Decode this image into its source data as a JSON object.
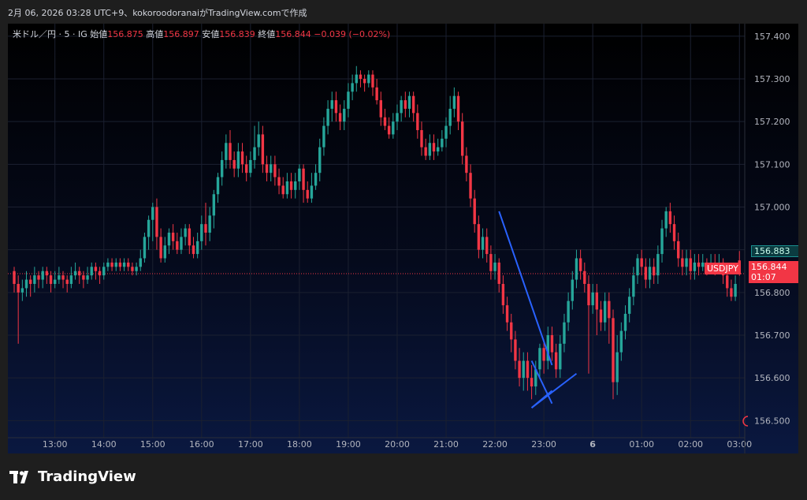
{
  "header": {
    "text": "2月 06, 2026 03:28 UTC+9、kokoroodoranaiがTradingView.comで作成"
  },
  "legend": {
    "symbol": "米ドル／円 · 5 · IG",
    "open_label": "始値",
    "open": "156.875",
    "high_label": "高値",
    "high": "156.897",
    "low_label": "安値",
    "low": "156.839",
    "close_label": "終値",
    "close": "156.844",
    "change": "−0.039 (−0.02%)"
  },
  "price_tags": {
    "bid": "156.883",
    "last_symbol": "USDJPY",
    "last_price": "156.844",
    "countdown": "01:07"
  },
  "footer": {
    "logo_text": "TradingView"
  },
  "colors": {
    "up": "#26a69a",
    "down": "#f23645",
    "drawing": "#2962ff",
    "bid_tag": "#0e6c6c"
  },
  "chart_data": {
    "type": "candlestick",
    "symbol": "USDJPY",
    "interval": "5",
    "ylim": [
      156.46,
      157.42
    ],
    "y_ticks": [
      "157.400",
      "157.300",
      "157.200",
      "157.100",
      "157.000",
      "156.900",
      "156.800",
      "156.700",
      "156.600",
      "156.500"
    ],
    "y_tick_values": [
      157.4,
      157.3,
      157.2,
      157.1,
      157.0,
      156.9,
      156.8,
      156.7,
      156.6,
      156.5
    ],
    "x_ticks": [
      "13:00",
      "14:00",
      "15:00",
      "16:00",
      "17:00",
      "18:00",
      "19:00",
      "20:00",
      "21:00",
      "22:00",
      "23:00",
      "6",
      "01:00",
      "02:00",
      "03:00"
    ],
    "x_tick_index": [
      10,
      22,
      34,
      46,
      58,
      70,
      82,
      94,
      106,
      118,
      130,
      142,
      154,
      166,
      178
    ],
    "last_price": 156.844,
    "grid": true,
    "candles": [
      [
        156.85,
        156.82,
        156.86,
        156.8
      ],
      [
        156.82,
        156.8,
        156.84,
        156.68
      ],
      [
        156.8,
        156.81,
        156.83,
        156.78
      ],
      [
        156.81,
        156.83,
        156.85,
        156.79
      ],
      [
        156.83,
        156.82,
        156.84,
        156.79
      ],
      [
        156.82,
        156.84,
        156.86,
        156.8
      ],
      [
        156.84,
        156.83,
        156.85,
        156.81
      ],
      [
        156.83,
        156.85,
        156.86,
        156.81
      ],
      [
        156.85,
        156.84,
        156.86,
        156.82
      ],
      [
        156.84,
        156.82,
        156.85,
        156.8
      ],
      [
        156.82,
        156.83,
        156.85,
        156.81
      ],
      [
        156.83,
        156.84,
        156.86,
        156.82
      ],
      [
        156.84,
        156.83,
        156.85,
        156.81
      ],
      [
        156.83,
        156.82,
        156.84,
        156.8
      ],
      [
        156.82,
        156.84,
        156.86,
        156.81
      ],
      [
        156.84,
        156.85,
        156.87,
        156.83
      ],
      [
        156.85,
        156.84,
        156.86,
        156.82
      ],
      [
        156.84,
        156.83,
        156.85,
        156.81
      ],
      [
        156.83,
        156.84,
        156.86,
        156.82
      ],
      [
        156.84,
        156.86,
        156.87,
        156.83
      ],
      [
        156.86,
        156.85,
        156.87,
        156.83
      ],
      [
        156.85,
        156.84,
        156.86,
        156.82
      ],
      [
        156.84,
        156.86,
        156.87,
        156.83
      ],
      [
        156.86,
        156.87,
        156.88,
        156.85
      ],
      [
        156.87,
        156.86,
        156.88,
        156.85
      ],
      [
        156.86,
        156.87,
        156.88,
        156.85
      ],
      [
        156.87,
        156.86,
        156.88,
        156.85
      ],
      [
        156.86,
        156.87,
        156.88,
        156.85
      ],
      [
        156.87,
        156.86,
        156.88,
        156.85
      ],
      [
        156.86,
        156.85,
        156.87,
        156.84
      ],
      [
        156.85,
        156.86,
        156.87,
        156.84
      ],
      [
        156.86,
        156.88,
        156.9,
        156.85
      ],
      [
        156.88,
        156.93,
        156.94,
        156.87
      ],
      [
        156.93,
        156.97,
        156.98,
        156.9
      ],
      [
        156.97,
        157.0,
        157.01,
        156.92
      ],
      [
        157.0,
        156.93,
        157.02,
        156.9
      ],
      [
        156.93,
        156.88,
        156.95,
        156.87
      ],
      [
        156.88,
        156.91,
        156.93,
        156.87
      ],
      [
        156.91,
        156.94,
        156.95,
        156.89
      ],
      [
        156.94,
        156.92,
        156.96,
        156.9
      ],
      [
        156.92,
        156.9,
        156.94,
        156.89
      ],
      [
        156.9,
        156.93,
        156.95,
        156.89
      ],
      [
        156.93,
        156.95,
        156.96,
        156.91
      ],
      [
        156.95,
        156.91,
        156.96,
        156.89
      ],
      [
        156.91,
        156.89,
        156.93,
        156.88
      ],
      [
        156.89,
        156.92,
        156.94,
        156.88
      ],
      [
        156.92,
        156.96,
        156.98,
        156.9
      ],
      [
        156.96,
        156.94,
        157.01,
        156.91
      ],
      [
        156.94,
        156.98,
        157.0,
        156.92
      ],
      [
        156.98,
        157.03,
        157.04,
        156.95
      ],
      [
        157.03,
        157.07,
        157.08,
        157.01
      ],
      [
        157.07,
        157.11,
        157.13,
        157.05
      ],
      [
        157.11,
        157.15,
        157.17,
        157.09
      ],
      [
        157.15,
        157.11,
        157.18,
        157.09
      ],
      [
        157.11,
        157.09,
        157.13,
        157.07
      ],
      [
        157.09,
        157.13,
        157.15,
        157.07
      ],
      [
        157.13,
        157.1,
        157.15,
        157.08
      ],
      [
        157.1,
        157.08,
        157.12,
        157.06
      ],
      [
        157.08,
        157.11,
        157.13,
        157.07
      ],
      [
        157.11,
        157.14,
        157.19,
        157.09
      ],
      [
        157.14,
        157.17,
        157.2,
        157.12
      ],
      [
        157.17,
        157.1,
        157.19,
        157.08
      ],
      [
        157.1,
        157.08,
        157.12,
        157.06
      ],
      [
        157.08,
        157.1,
        157.12,
        157.06
      ],
      [
        157.1,
        157.07,
        157.12,
        157.05
      ],
      [
        157.07,
        157.05,
        157.09,
        157.03
      ],
      [
        157.05,
        157.03,
        157.07,
        157.02
      ],
      [
        157.03,
        157.06,
        157.08,
        157.02
      ],
      [
        157.06,
        157.04,
        157.08,
        157.02
      ],
      [
        157.04,
        157.06,
        157.08,
        157.02
      ],
      [
        157.06,
        157.09,
        157.1,
        157.04
      ],
      [
        157.09,
        157.04,
        157.1,
        157.01
      ],
      [
        157.04,
        157.02,
        157.06,
        157.01
      ],
      [
        157.02,
        157.05,
        157.08,
        157.01
      ],
      [
        157.05,
        157.08,
        157.1,
        157.04
      ],
      [
        157.08,
        157.14,
        157.16,
        157.06
      ],
      [
        157.14,
        157.19,
        157.21,
        157.12
      ],
      [
        157.19,
        157.23,
        157.25,
        157.17
      ],
      [
        157.23,
        157.25,
        157.27,
        157.2
      ],
      [
        157.25,
        157.22,
        157.27,
        157.2
      ],
      [
        157.22,
        157.2,
        157.24,
        157.18
      ],
      [
        157.2,
        157.23,
        157.25,
        157.18
      ],
      [
        157.23,
        157.27,
        157.29,
        157.21
      ],
      [
        157.27,
        157.29,
        157.31,
        157.25
      ],
      [
        157.29,
        157.31,
        157.33,
        157.27
      ],
      [
        157.31,
        157.3,
        157.32,
        157.28
      ],
      [
        157.3,
        157.29,
        157.31,
        157.27
      ],
      [
        157.29,
        157.31,
        157.32,
        157.28
      ],
      [
        157.31,
        157.28,
        157.32,
        157.26
      ],
      [
        157.28,
        157.25,
        157.3,
        157.24
      ],
      [
        157.25,
        157.21,
        157.27,
        157.19
      ],
      [
        157.21,
        157.19,
        157.23,
        157.18
      ],
      [
        157.19,
        157.17,
        157.21,
        157.16
      ],
      [
        157.17,
        157.2,
        157.22,
        157.16
      ],
      [
        157.2,
        157.22,
        157.24,
        157.18
      ],
      [
        157.22,
        157.25,
        157.26,
        157.2
      ],
      [
        157.25,
        157.23,
        157.27,
        157.21
      ],
      [
        157.23,
        157.26,
        157.27,
        157.21
      ],
      [
        157.26,
        157.22,
        157.27,
        157.2
      ],
      [
        157.22,
        157.18,
        157.24,
        157.16
      ],
      [
        157.18,
        157.14,
        157.2,
        157.12
      ],
      [
        157.14,
        157.12,
        157.16,
        157.11
      ],
      [
        157.12,
        157.15,
        157.17,
        157.11
      ],
      [
        157.15,
        157.13,
        157.17,
        157.11
      ],
      [
        157.13,
        157.14,
        157.16,
        157.12
      ],
      [
        157.14,
        157.16,
        157.18,
        157.13
      ],
      [
        157.16,
        157.19,
        157.21,
        157.14
      ],
      [
        157.19,
        157.23,
        157.26,
        157.17
      ],
      [
        157.23,
        157.26,
        157.28,
        157.21
      ],
      [
        157.26,
        157.2,
        157.27,
        157.18
      ],
      [
        157.2,
        157.12,
        157.22,
        157.1
      ],
      [
        157.12,
        157.08,
        157.14,
        157.06
      ],
      [
        157.08,
        157.02,
        157.1,
        157.0
      ],
      [
        157.02,
        156.96,
        157.04,
        156.94
      ],
      [
        156.96,
        156.9,
        156.98,
        156.88
      ],
      [
        156.9,
        156.93,
        156.95,
        156.88
      ],
      [
        156.93,
        156.89,
        156.95,
        156.87
      ],
      [
        156.89,
        156.85,
        156.91,
        156.83
      ],
      [
        156.85,
        156.87,
        156.89,
        156.83
      ],
      [
        156.87,
        156.82,
        156.88,
        156.8
      ],
      [
        156.82,
        156.77,
        156.84,
        156.75
      ],
      [
        156.77,
        156.73,
        156.79,
        156.71
      ],
      [
        156.73,
        156.69,
        156.75,
        156.66
      ],
      [
        156.69,
        156.64,
        156.71,
        156.62
      ],
      [
        156.64,
        156.6,
        156.67,
        156.58
      ],
      [
        156.6,
        156.64,
        156.66,
        156.57
      ],
      [
        156.64,
        156.6,
        156.66,
        156.57
      ],
      [
        156.6,
        156.58,
        156.63,
        156.55
      ],
      [
        156.58,
        156.62,
        156.64,
        156.56
      ],
      [
        156.62,
        156.67,
        156.68,
        156.6
      ],
      [
        156.67,
        156.64,
        156.69,
        156.61
      ],
      [
        156.64,
        156.7,
        156.72,
        156.62
      ],
      [
        156.7,
        156.66,
        156.72,
        156.64
      ],
      [
        156.66,
        156.62,
        156.68,
        156.6
      ],
      [
        156.62,
        156.68,
        156.7,
        156.6
      ],
      [
        156.68,
        156.73,
        156.75,
        156.66
      ],
      [
        156.73,
        156.78,
        156.8,
        156.71
      ],
      [
        156.78,
        156.83,
        156.85,
        156.76
      ],
      [
        156.83,
        156.88,
        156.9,
        156.81
      ],
      [
        156.88,
        156.85,
        156.9,
        156.83
      ],
      [
        156.85,
        156.82,
        156.87,
        156.8
      ],
      [
        156.82,
        156.77,
        156.84,
        156.61
      ],
      [
        156.77,
        156.8,
        156.82,
        156.75
      ],
      [
        156.8,
        156.76,
        156.82,
        156.7
      ],
      [
        156.76,
        156.73,
        156.78,
        156.71
      ],
      [
        156.73,
        156.78,
        156.8,
        156.71
      ],
      [
        156.78,
        156.74,
        156.8,
        156.68
      ],
      [
        156.74,
        156.59,
        156.76,
        156.55
      ],
      [
        156.59,
        156.66,
        156.7,
        156.56
      ],
      [
        156.66,
        156.71,
        156.73,
        156.64
      ],
      [
        156.71,
        156.75,
        156.77,
        156.69
      ],
      [
        156.75,
        156.79,
        156.81,
        156.73
      ],
      [
        156.79,
        156.84,
        156.86,
        156.77
      ],
      [
        156.84,
        156.88,
        156.89,
        156.82
      ],
      [
        156.88,
        156.86,
        156.9,
        156.84
      ],
      [
        156.86,
        156.83,
        156.88,
        156.81
      ],
      [
        156.83,
        156.86,
        156.88,
        156.81
      ],
      [
        156.86,
        156.84,
        156.88,
        156.82
      ],
      [
        156.84,
        156.89,
        156.91,
        156.82
      ],
      [
        156.89,
        156.95,
        156.97,
        156.87
      ],
      [
        156.95,
        156.99,
        157.0,
        156.93
      ],
      [
        156.99,
        156.96,
        157.01,
        156.94
      ],
      [
        156.96,
        156.92,
        156.98,
        156.9
      ],
      [
        156.92,
        156.88,
        156.94,
        156.86
      ],
      [
        156.88,
        156.86,
        156.9,
        156.84
      ],
      [
        156.86,
        156.88,
        156.9,
        156.84
      ],
      [
        156.88,
        156.85,
        156.9,
        156.83
      ],
      [
        156.85,
        156.87,
        156.89,
        156.83
      ],
      [
        156.87,
        156.86,
        156.89,
        156.84
      ],
      [
        156.86,
        156.87,
        156.89,
        156.85
      ],
      [
        156.87,
        156.86,
        156.88,
        156.84
      ],
      [
        156.86,
        156.87,
        156.89,
        156.85
      ],
      [
        156.87,
        156.86,
        156.89,
        156.84
      ],
      [
        156.86,
        156.87,
        156.89,
        156.85
      ],
      [
        156.87,
        156.84,
        156.88,
        156.82
      ],
      [
        156.84,
        156.81,
        156.86,
        156.79
      ],
      [
        156.81,
        156.79,
        156.83,
        156.78
      ],
      [
        156.79,
        156.82,
        156.84,
        156.78
      ],
      [
        156.875,
        156.844,
        156.897,
        156.839
      ]
    ],
    "drawing_lines": [
      {
        "from": [
          119,
          156.99
        ],
        "to": [
          132,
          156.63
        ]
      },
      {
        "from": [
          127,
          156.64
        ],
        "to": [
          132,
          156.54
        ]
      },
      {
        "from": [
          127,
          156.53
        ],
        "to": [
          132,
          156.57
        ]
      },
      {
        "from": [
          127,
          156.53
        ],
        "to": [
          138,
          156.61
        ]
      }
    ]
  }
}
